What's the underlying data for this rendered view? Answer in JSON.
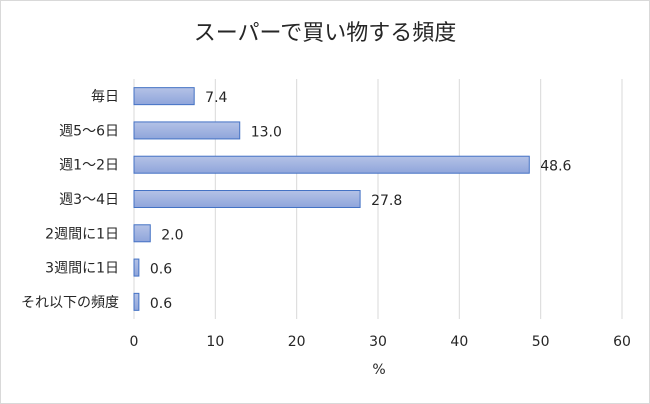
{
  "chart_data": {
    "type": "bar",
    "orientation": "horizontal",
    "title": "スーパーで買い物する頻度",
    "xlabel": "%",
    "ylabel": "",
    "categories": [
      "毎日",
      "週5～6日",
      "週1～2日",
      "週3～4日",
      "2週間に1日",
      "3週間に1日",
      "それ以下の頻度"
    ],
    "values": [
      7.4,
      13.0,
      48.6,
      27.8,
      2.0,
      0.6,
      0.6
    ],
    "value_labels": [
      "7.4",
      "13.0",
      "48.6",
      "27.8",
      "2.0",
      "0.6",
      "0.6"
    ],
    "xlim": [
      0,
      60
    ],
    "ticks": [
      "0",
      "10",
      "20",
      "30",
      "40",
      "50",
      "60"
    ],
    "grid": true,
    "legend": "none",
    "colors": {
      "bar_fill_top": "#b4c2e6",
      "bar_fill_bottom": "#8fa5db",
      "bar_stroke": "#4472c4",
      "grid": "#d9d9d9",
      "text": "#262626"
    }
  }
}
